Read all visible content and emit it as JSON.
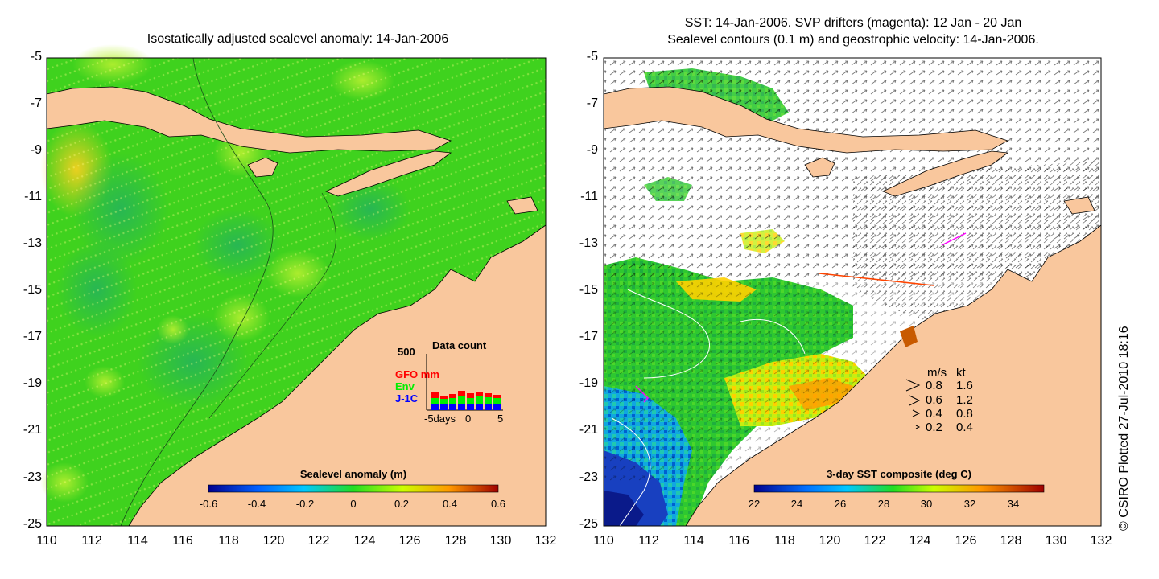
{
  "left_map": {
    "title": "Isostatically adjusted sealevel anomaly: 14-Jan-2006",
    "y_ticks": [
      "-5",
      "-7",
      "-9",
      "-11",
      "-13",
      "-15",
      "-17",
      "-19",
      "-21",
      "-23",
      "-25"
    ],
    "x_ticks": [
      "110",
      "112",
      "114",
      "116",
      "118",
      "120",
      "122",
      "124",
      "126",
      "128",
      "130",
      "132"
    ],
    "colorbar": {
      "title": "Sealevel anomaly (m)",
      "ticks": [
        "-0.6",
        "-0.4",
        "-0.2",
        "0",
        "0.2",
        "0.4",
        "0.6"
      ]
    },
    "data_count": {
      "title": "Data count",
      "max_label": "500",
      "series": [
        {
          "name": "GFO mm",
          "color": "#ff0000"
        },
        {
          "name": "Env",
          "color": "#00ee00"
        },
        {
          "name": "J-1C",
          "color": "#0000ff"
        }
      ],
      "x_labels": [
        "-5days",
        "0",
        "5"
      ]
    }
  },
  "right_map": {
    "title_line1": "SST: 14-Jan-2006. SVP drifters (magenta): 12 Jan - 20 Jan",
    "title_line2": "Sealevel contours (0.1 m) and geostrophic velocity: 14-Jan-2006.",
    "y_ticks": [
      "-5",
      "-7",
      "-9",
      "-11",
      "-13",
      "-15",
      "-17",
      "-19",
      "-21",
      "-23",
      "-25"
    ],
    "x_ticks": [
      "110",
      "112",
      "114",
      "116",
      "118",
      "120",
      "122",
      "124",
      "126",
      "128",
      "130",
      "132"
    ],
    "colorbar": {
      "title": "3-day SST composite (deg C)",
      "ticks": [
        "22",
        "24",
        "26",
        "28",
        "30",
        "32",
        "34"
      ]
    },
    "velocity_legend": {
      "header_ms": "m/s",
      "header_kt": "kt",
      "rows": [
        {
          "ms": "0.8",
          "kt": "1.6"
        },
        {
          "ms": "0.6",
          "kt": "1.2"
        },
        {
          "ms": "0.4",
          "kt": "0.8"
        },
        {
          "ms": "0.2",
          "kt": "0.4"
        }
      ]
    }
  },
  "credit": "© CSIRO Plotted 27-Jul-2010 18:16",
  "colors": {
    "land": "#f9c79d",
    "ocean_green": "#3fd21e",
    "ocean_light": "#8ce32c",
    "ocean_dark": "#22b84a"
  }
}
